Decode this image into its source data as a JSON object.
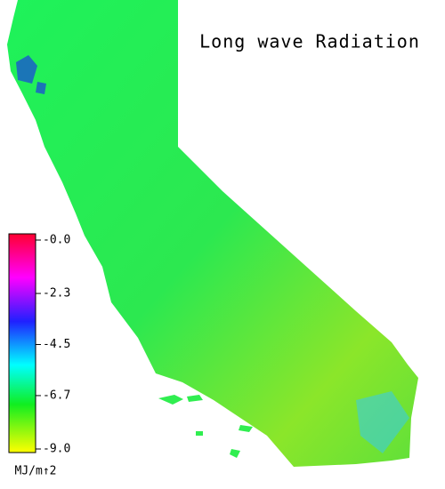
{
  "title": "Long wave Radiation",
  "colorbar": {
    "range": [
      -9,
      0
    ],
    "ticks": [
      {
        "value": 0,
        "label": "-0.0"
      },
      -2.3,
      -4.5,
      -6.7,
      {
        "value": -9,
        "label": "-9.0"
      }
    ],
    "unit": "MJ/m↑2"
  }
}
